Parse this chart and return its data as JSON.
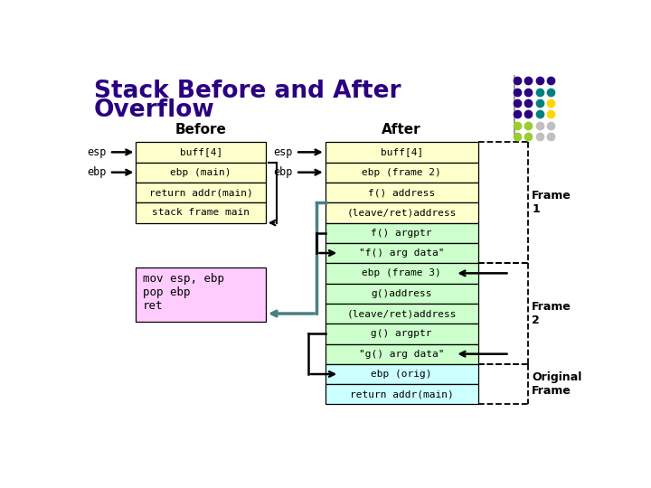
{
  "title_line1": "Stack Before and After",
  "title_line2": "Overflow",
  "title_color": "#2B0080",
  "bg_color": "#FFFFFF",
  "before_label": "Before",
  "after_label": "After",
  "before_cells": [
    {
      "text": "buff[4]",
      "color": "#FFFFCC"
    },
    {
      "text": "ebp (main)",
      "color": "#FFFFCC"
    },
    {
      "text": "return addr(main)",
      "color": "#FFFFCC"
    },
    {
      "text": "stack frame main",
      "color": "#FFFFCC"
    }
  ],
  "after_cells": [
    {
      "text": "buff[4]",
      "color": "#FFFFCC"
    },
    {
      "text": "ebp (frame 2)",
      "color": "#FFFFCC"
    },
    {
      "text": "f() address",
      "color": "#FFFFCC"
    },
    {
      "text": "(leave/ret)address",
      "color": "#FFFFCC"
    },
    {
      "text": "f() argptr",
      "color": "#CCFFCC"
    },
    {
      "text": "\"f() arg data\"",
      "color": "#CCFFCC"
    },
    {
      "text": "ebp (frame 3)",
      "color": "#CCFFCC"
    },
    {
      "text": "g()address",
      "color": "#CCFFCC"
    },
    {
      "text": "(leave/ret)address",
      "color": "#CCFFCC"
    },
    {
      "text": "g() argptr",
      "color": "#CCFFCC"
    },
    {
      "text": "\"g() arg data\"",
      "color": "#CCFFCC"
    },
    {
      "text": "ebp (orig)",
      "color": "#CCFFFF"
    },
    {
      "text": "return addr(main)",
      "color": "#CCFFFF"
    }
  ],
  "code_box": {
    "text": "mov esp, ebp\npop ebp\nret",
    "color": "#FFCCFF"
  },
  "frame1_label": "Frame\n1",
  "frame2_label": "Frame\n2",
  "orig_label": "Original\nFrame",
  "dot_grid": [
    [
      "#2B0080",
      "#2B0080",
      "#2B0080",
      "#2B0080"
    ],
    [
      "#2B0080",
      "#2B0080",
      "#008080",
      "#008080"
    ],
    [
      "#2B0080",
      "#2B0080",
      "#008080",
      "#FFD700"
    ],
    [
      "#2B0080",
      "#2B0080",
      "#008080",
      "#FFD700"
    ],
    [
      "#9ACD32",
      "#9ACD32",
      "#C0C0C0",
      "#C0C0C0"
    ],
    [
      "#9ACD32",
      "#9ACD32",
      "#C0C0C0",
      "#C0C0C0"
    ]
  ],
  "teal_color": "#4A8080"
}
